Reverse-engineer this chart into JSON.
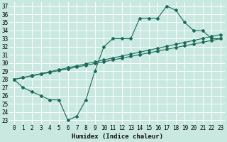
{
  "title": "",
  "xlabel": "Humidex (Indice chaleur)",
  "ylabel": "",
  "bg_color": "#c8e8e0",
  "grid_color": "#ffffff",
  "line_color": "#1a6b5a",
  "xlim": [
    -0.5,
    23.5
  ],
  "ylim": [
    22.5,
    37.5
  ],
  "xticks": [
    0,
    1,
    2,
    3,
    4,
    5,
    6,
    7,
    8,
    9,
    10,
    11,
    12,
    13,
    14,
    15,
    16,
    17,
    18,
    19,
    20,
    21,
    22,
    23
  ],
  "yticks": [
    23,
    24,
    25,
    26,
    27,
    28,
    29,
    30,
    31,
    32,
    33,
    34,
    35,
    36,
    37
  ],
  "line1_x": [
    0,
    1,
    2,
    3,
    4,
    5,
    6,
    7,
    8,
    9,
    10,
    11,
    12,
    13,
    14,
    15,
    16,
    17,
    18,
    19,
    20,
    21,
    22,
    23
  ],
  "line1_y": [
    28,
    27,
    26.5,
    26,
    25.5,
    25.5,
    23,
    23.5,
    25.5,
    29,
    32,
    33,
    33,
    33,
    35.5,
    35.5,
    35.5,
    37,
    36.5,
    35,
    34,
    34,
    33,
    33
  ],
  "line2_x": [
    0,
    1,
    2,
    3,
    4,
    5,
    6,
    7,
    8,
    9,
    10,
    11,
    12,
    13,
    14,
    15,
    16,
    17,
    18,
    19,
    20,
    21,
    22,
    23
  ],
  "line2_y": [
    28.0,
    28.217,
    28.435,
    28.652,
    28.87,
    29.087,
    29.304,
    29.522,
    29.739,
    29.957,
    30.174,
    30.391,
    30.609,
    30.826,
    31.043,
    31.261,
    31.478,
    31.696,
    31.913,
    32.13,
    32.348,
    32.565,
    32.783,
    33.0
  ],
  "line3_x": [
    0,
    1,
    2,
    3,
    4,
    5,
    6,
    7,
    8,
    9,
    10,
    11,
    12,
    13,
    14,
    15,
    16,
    17,
    18,
    19,
    20,
    21,
    22,
    23
  ],
  "line3_y": [
    28.0,
    28.239,
    28.478,
    28.717,
    28.957,
    29.196,
    29.435,
    29.674,
    29.913,
    30.152,
    30.391,
    30.63,
    30.87,
    31.109,
    31.348,
    31.587,
    31.826,
    32.065,
    32.304,
    32.543,
    32.783,
    33.022,
    33.261,
    33.5
  ],
  "marker": "D",
  "markersize": 2,
  "linewidth": 0.8,
  "tick_fontsize": 5.5,
  "xlabel_fontsize": 6.5
}
